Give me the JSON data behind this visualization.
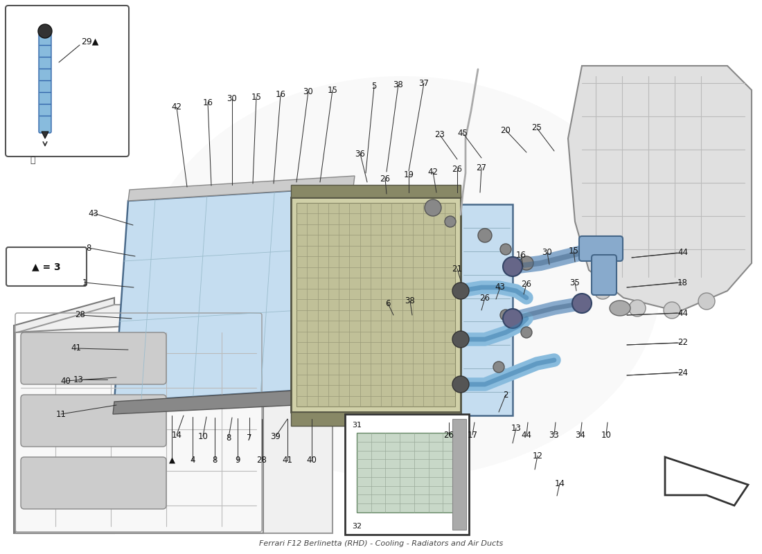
{
  "title": "Ferrari F12 Berlinetta (RHD) - Cooling - Radiators and Air Ducts",
  "bg_color": "#ffffff",
  "fig_width": 11.0,
  "fig_height": 8.0,
  "watermark_color": "#d4b840",
  "watermark_alpha": 0.35,
  "label_fs": 8.0,
  "label_color": "#111111",
  "line_color": "#333333",
  "main_rad_fill": "#c5ddf0",
  "main_rad_edge": "#4a6a8a",
  "condenser_fill": "#c8c896",
  "condenser_edge": "#555544",
  "side_rad_fill": "#c5ddf0",
  "side_rad_edge": "#4a6a8a",
  "fan_outer_fill": "#d8d8d8",
  "fan_inner_fill": "#c0c0c0",
  "fan_blade_fill": "#aaaaaa",
  "engine_fill": "#e0e0e0",
  "engine_edge": "#888888",
  "duct_fill": "#eeeeee",
  "duct_edge": "#777777",
  "hose_fill": "#7aaccc",
  "hose_edge": "#3a6a9a",
  "inset_box_fill": "#ffffff",
  "inset_rad_fill": "#c8d8c8",
  "arrow_fill": "#ffffff",
  "arrow_edge": "#333333"
}
